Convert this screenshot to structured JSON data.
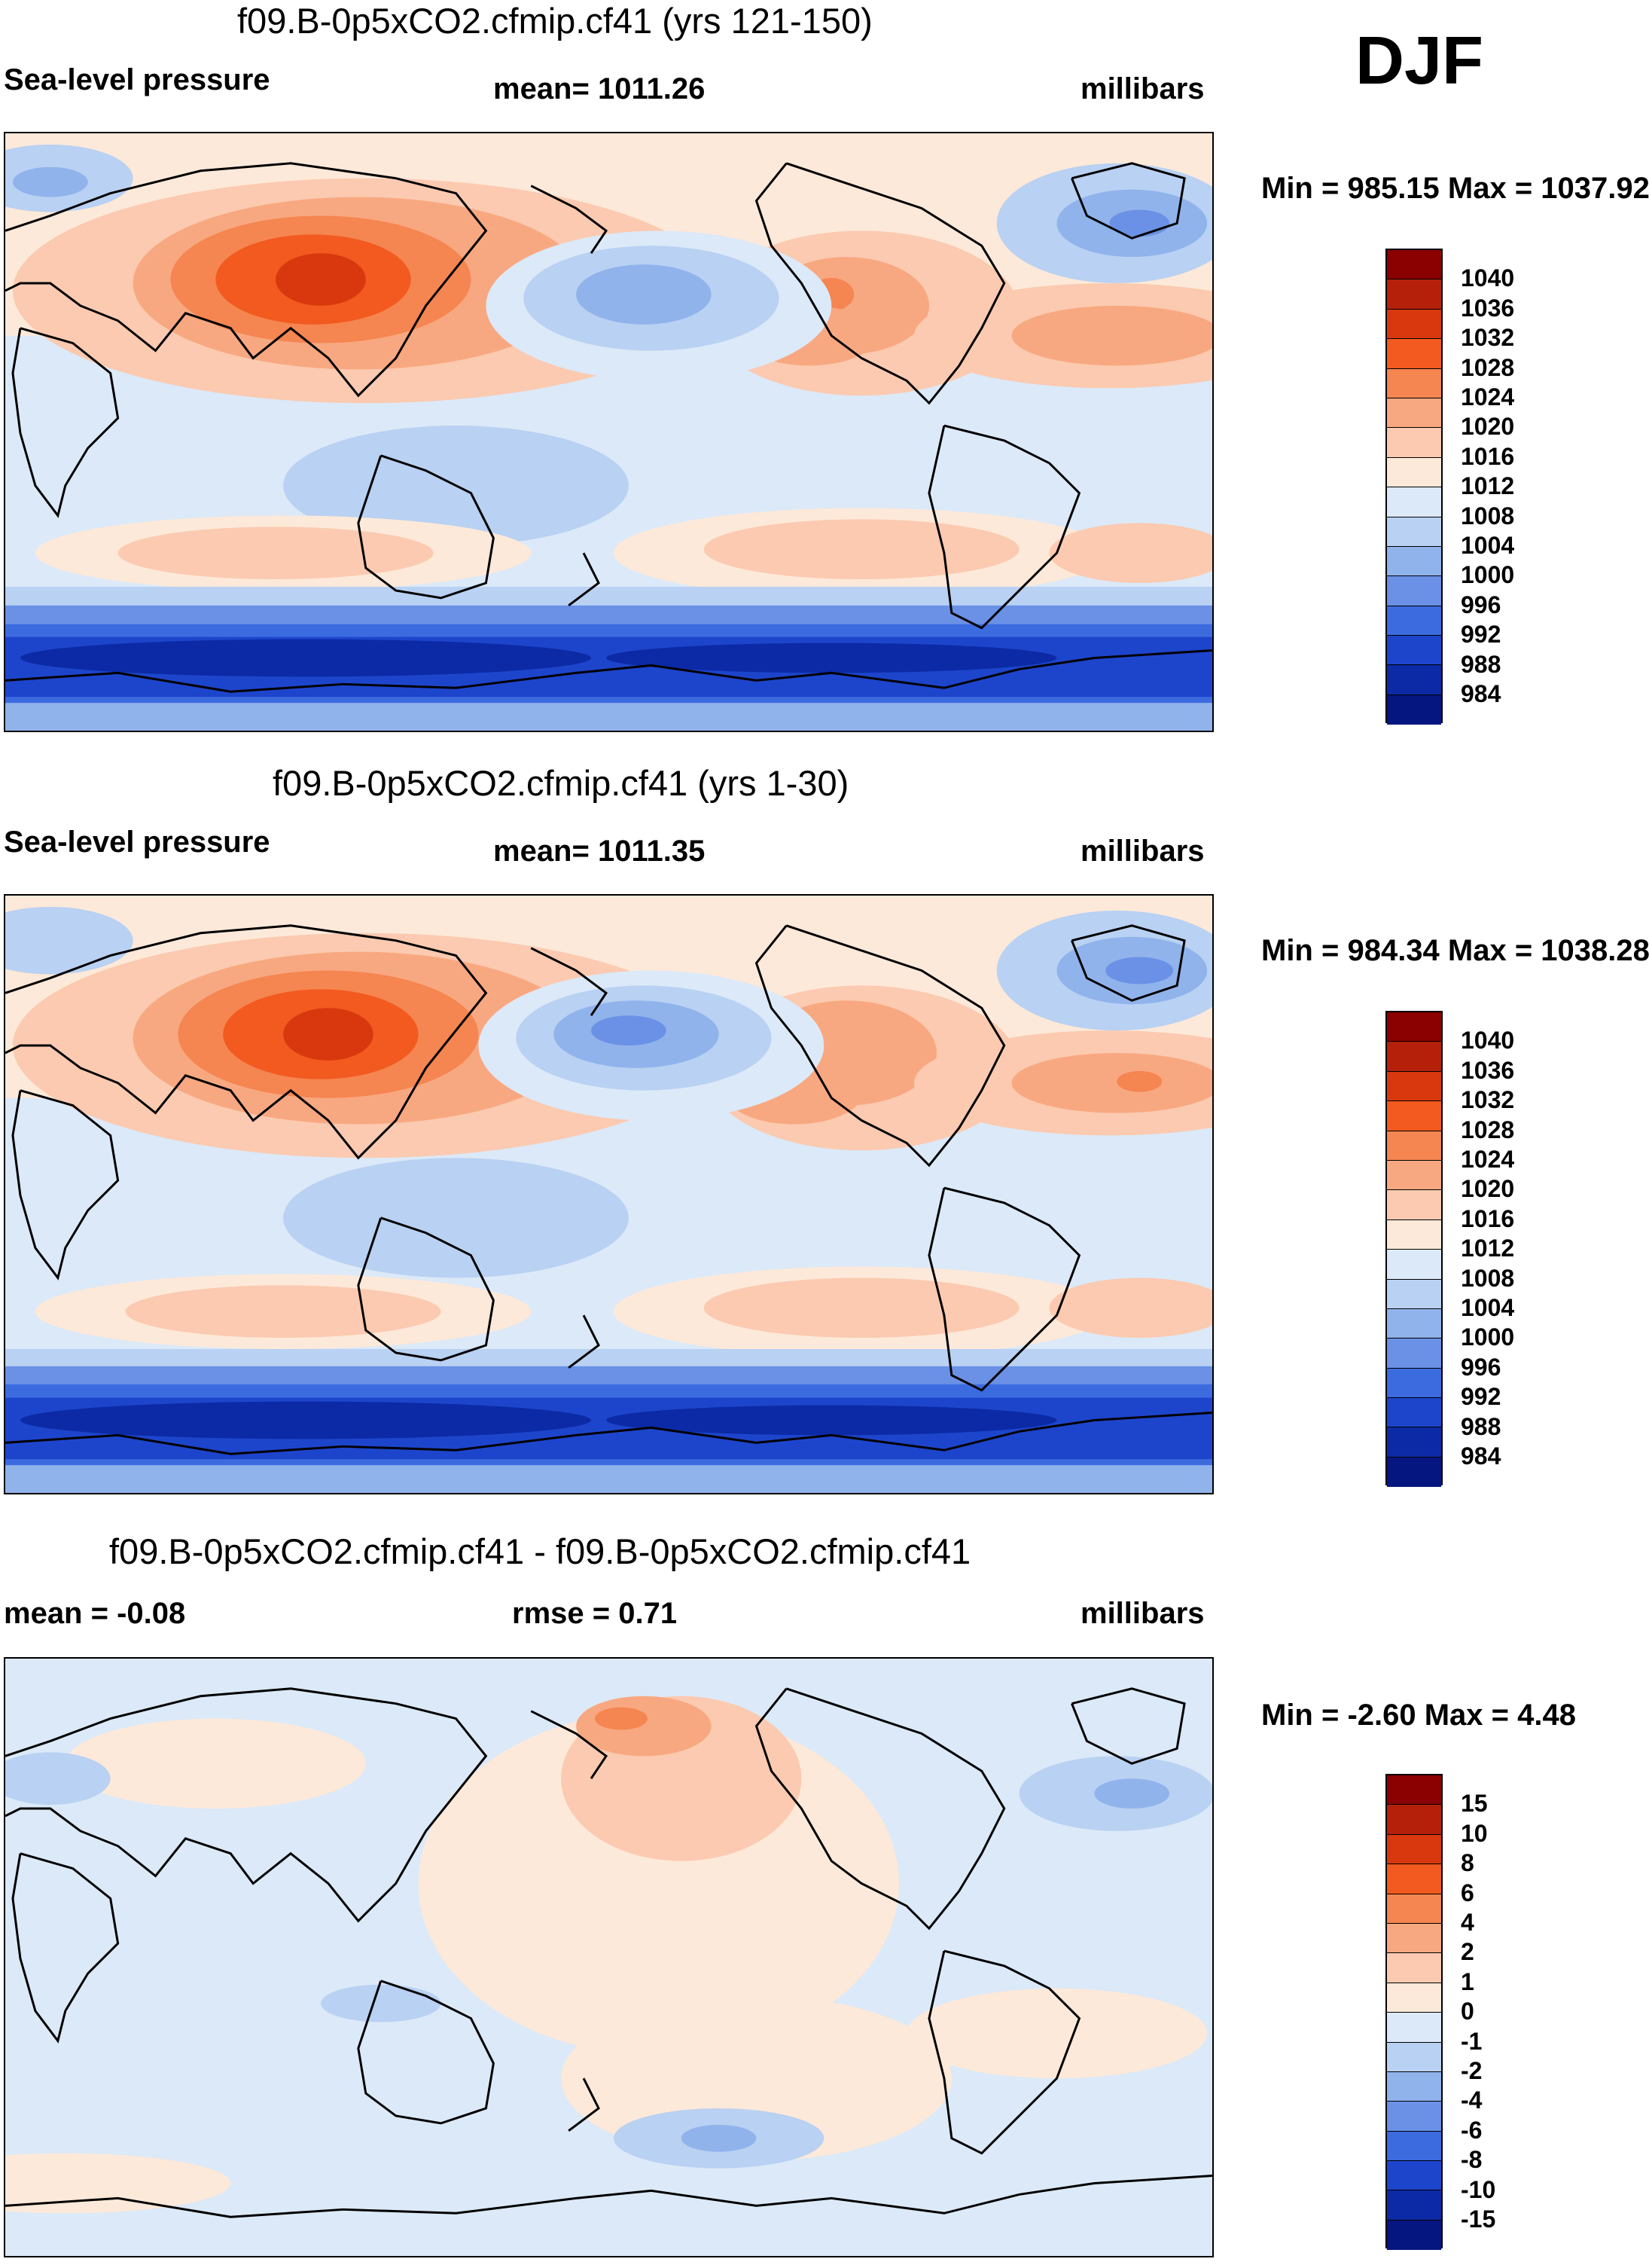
{
  "season": "DJF",
  "panels": [
    {
      "title": "f09.B-0p5xCO2.cfmip.cf41 (yrs 121-150)",
      "left_label": "Sea-level pressure",
      "center_label": "mean= 1011.26",
      "right_label": "millibars",
      "minmax": "Min = 985.15 Max = 1037.92",
      "colorbar": {
        "levels": [
          "1040",
          "1036",
          "1032",
          "1028",
          "1024",
          "1020",
          "1016",
          "1012",
          "1008",
          "1004",
          "1000",
          "996",
          "992",
          "988",
          "984"
        ],
        "colors": [
          "#8b0000",
          "#b5200b",
          "#d9380e",
          "#f25a1f",
          "#f58551",
          "#f8a880",
          "#fbcab0",
          "#fde9d9",
          "#dce9f8",
          "#b9d1f2",
          "#91b3ec",
          "#6a91e6",
          "#3c6be0",
          "#1d45cc",
          "#0c2aa5",
          "#061680"
        ]
      }
    },
    {
      "title": "f09.B-0p5xCO2.cfmip.cf41 (yrs 1-30)",
      "left_label": "Sea-level pressure",
      "center_label": "mean= 1011.35",
      "right_label": "millibars",
      "minmax": "Min = 984.34 Max = 1038.28",
      "colorbar": {
        "levels": [
          "1040",
          "1036",
          "1032",
          "1028",
          "1024",
          "1020",
          "1016",
          "1012",
          "1008",
          "1004",
          "1000",
          "996",
          "992",
          "988",
          "984"
        ],
        "colors": [
          "#8b0000",
          "#b5200b",
          "#d9380e",
          "#f25a1f",
          "#f58551",
          "#f8a880",
          "#fbcab0",
          "#fde9d9",
          "#dce9f8",
          "#b9d1f2",
          "#91b3ec",
          "#6a91e6",
          "#3c6be0",
          "#1d45cc",
          "#0c2aa5",
          "#061680"
        ]
      }
    },
    {
      "title": "f09.B-0p5xCO2.cfmip.cf41 - f09.B-0p5xCO2.cfmip.cf41",
      "left_label": "mean =  -0.08",
      "center_label": "rmse =   0.71",
      "right_label": "millibars",
      "minmax": "Min =  -2.60 Max =   4.48",
      "colorbar": {
        "levels": [
          "15",
          "10",
          "8",
          "6",
          "4",
          "2",
          "1",
          "0",
          "-1",
          "-2",
          "-4",
          "-6",
          "-8",
          "-10",
          "-15"
        ],
        "colors": [
          "#8b0000",
          "#b5200b",
          "#d9380e",
          "#f25a1f",
          "#f58551",
          "#f8a880",
          "#fbcab0",
          "#fde9d9",
          "#dce9f8",
          "#b9d1f2",
          "#91b3ec",
          "#6a91e6",
          "#3c6be0",
          "#1d45cc",
          "#0c2aa5",
          "#061680"
        ]
      }
    }
  ]
}
